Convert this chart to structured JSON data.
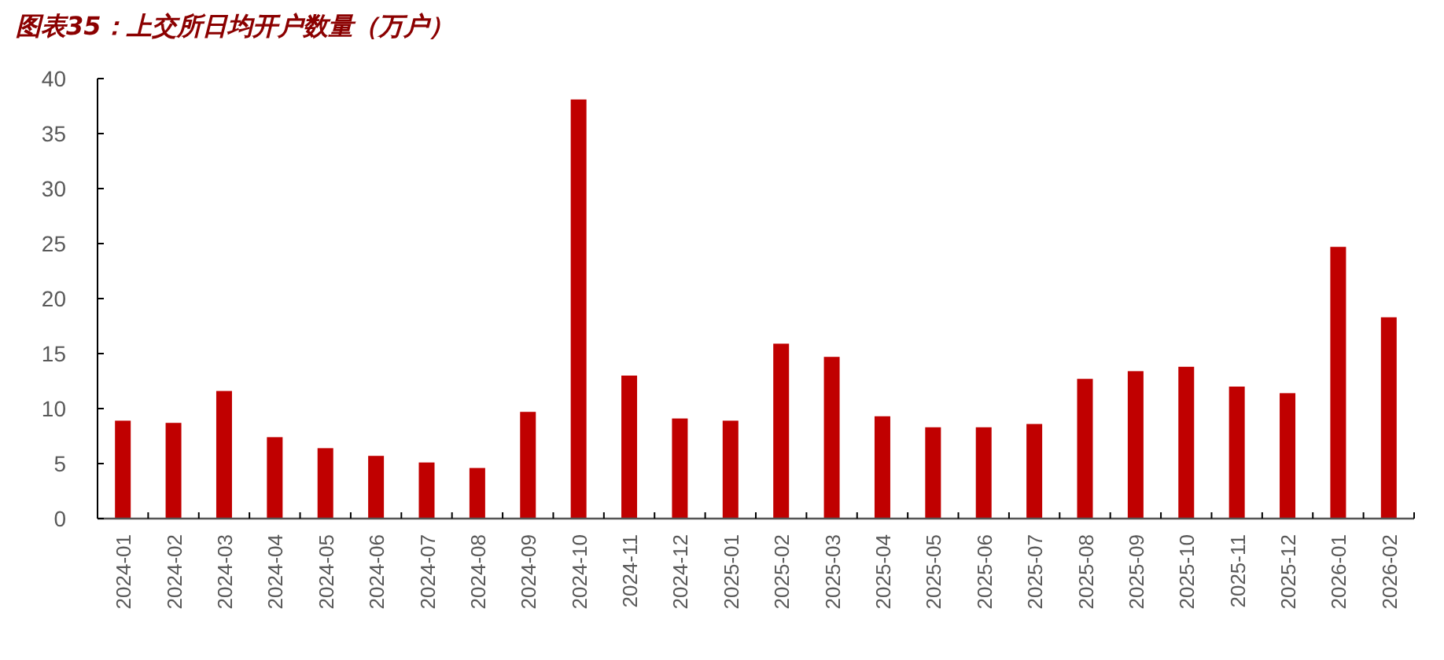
{
  "chart_data": {
    "type": "bar",
    "title": "图表35：上交所日均开户数量（万户）",
    "categories": [
      "2024-01",
      "2024-02",
      "2024-03",
      "2024-04",
      "2024-05",
      "2024-06",
      "2024-07",
      "2024-08",
      "2024-09",
      "2024-10",
      "2024-11",
      "2024-12",
      "2025-01",
      "2025-02",
      "2025-03",
      "2025-04",
      "2025-05",
      "2025-06",
      "2025-07",
      "2025-08",
      "2025-09",
      "2025-10",
      "2025-11",
      "2025-12",
      "2026-01",
      "2026-02"
    ],
    "values": [
      8.9,
      8.7,
      11.6,
      7.4,
      6.4,
      5.7,
      5.1,
      4.6,
      9.7,
      38.1,
      13.0,
      9.1,
      8.9,
      15.9,
      14.7,
      9.3,
      8.3,
      8.3,
      8.6,
      12.7,
      13.4,
      13.8,
      12.0,
      11.4,
      24.7,
      18.3
    ],
    "color": "#c00000",
    "ylim": [
      0,
      40
    ],
    "yticks": [
      0,
      5,
      10,
      15,
      20,
      25,
      30,
      35,
      40
    ],
    "grid": false
  }
}
